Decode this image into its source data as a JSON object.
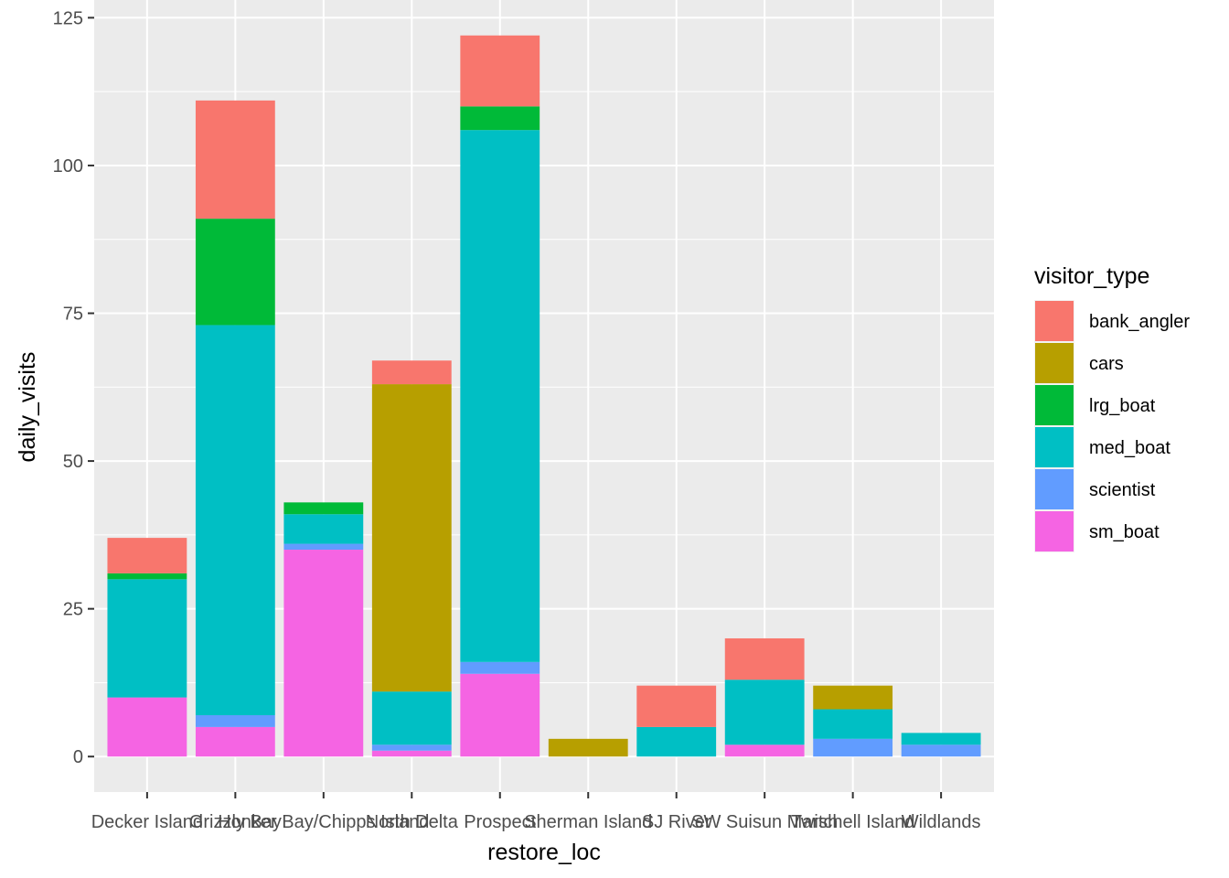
{
  "chart_data": {
    "type": "bar",
    "stacked": true,
    "xlabel": "restore_loc",
    "ylabel": "daily_visits",
    "ylim": [
      -6,
      128
    ],
    "yticks": [
      0,
      25,
      50,
      75,
      100,
      125
    ],
    "grid": true,
    "legend_placement": "right",
    "legend_title": "visitor_type",
    "categories": [
      "Decker Island",
      "Grizzly Bay",
      "Honker Bay/Chipps Island",
      "North Delta",
      "Prospect",
      "Sherman Island",
      "SJ River",
      "SW Suisun Marsh",
      "Twitchell Island",
      "Wildlands"
    ],
    "series": [
      {
        "name": "bank_angler",
        "color": "#F8766D",
        "values": [
          6,
          20,
          0,
          4,
          12,
          0,
          7,
          7,
          0,
          0
        ]
      },
      {
        "name": "cars",
        "color": "#B79F00",
        "values": [
          0,
          0,
          0,
          52,
          0,
          3,
          0,
          0,
          4,
          0
        ]
      },
      {
        "name": "lrg_boat",
        "color": "#00BA38",
        "values": [
          1,
          18,
          2,
          0,
          4,
          0,
          0,
          0,
          0,
          0
        ]
      },
      {
        "name": "med_boat",
        "color": "#00BFC4",
        "values": [
          20,
          66,
          5,
          9,
          90,
          0,
          5,
          11,
          5,
          2
        ]
      },
      {
        "name": "scientist",
        "color": "#619CFF",
        "values": [
          0,
          2,
          1,
          1,
          2,
          0,
          0,
          0,
          3,
          2
        ]
      },
      {
        "name": "sm_boat",
        "color": "#F564E3",
        "values": [
          10,
          5,
          35,
          1,
          14,
          0,
          0,
          2,
          0,
          0
        ]
      }
    ]
  }
}
